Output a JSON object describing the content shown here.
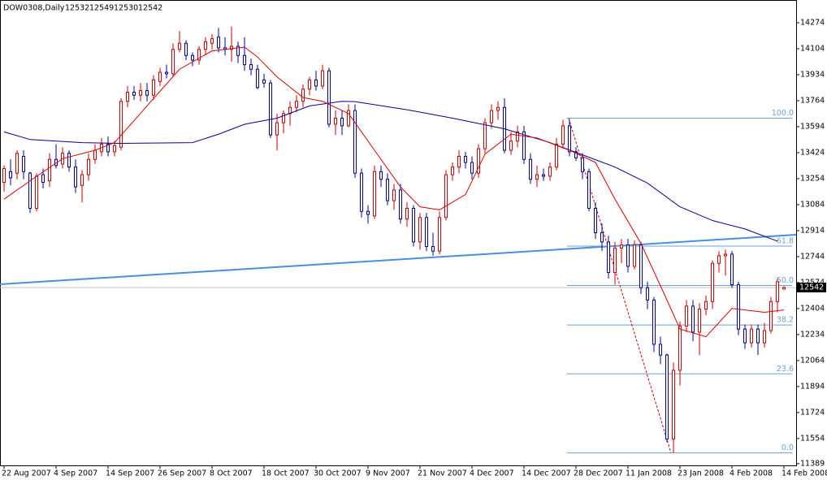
{
  "chart_data": {
    "type": "candlestick",
    "title": "DOW0308,Daily",
    "categories": [
      "22 Aug 2007",
      null,
      null,
      null,
      null,
      null,
      null,
      null,
      "4 Sep 2007",
      null,
      null,
      null,
      null,
      null,
      null,
      null,
      "14 Sep 2007",
      null,
      null,
      null,
      null,
      null,
      null,
      null,
      "26 Sep 2007",
      null,
      null,
      null,
      null,
      null,
      null,
      null,
      "8 Oct 2007",
      null,
      null,
      null,
      null,
      null,
      null,
      null,
      "18 Oct 2007",
      null,
      null,
      null,
      null,
      null,
      null,
      null,
      "30 Oct 2007",
      null,
      null,
      null,
      null,
      null,
      null,
      null,
      "9 Nov 2007",
      null,
      null,
      null,
      null,
      null,
      null,
      null,
      "21 Nov 2007",
      null,
      null,
      null,
      null,
      null,
      null,
      null,
      "4 Dec 2007",
      null,
      null,
      null,
      null,
      null,
      null,
      null,
      "14 Dec 2007",
      null,
      null,
      null,
      null,
      null,
      null,
      null,
      "28 Dec 2007",
      null,
      null,
      null,
      null,
      null,
      null,
      null,
      "11 Jan 2008",
      null,
      null,
      null,
      null,
      null,
      null,
      null,
      "23 Jan 2008",
      null,
      null,
      null,
      null,
      null,
      null,
      null,
      "4 Feb 2008",
      null,
      null,
      null,
      null,
      null,
      null,
      null,
      "14 Feb 2008"
    ],
    "open": [
      13230,
      13300,
      13290,
      13400,
      13290,
      13060,
      13280,
      13240,
      13380,
      13350,
      13420,
      13330,
      13210,
      13280,
      13380,
      13430,
      13480,
      13430,
      13460,
      13760,
      13820,
      13800,
      13830,
      13800,
      13890,
      13950,
      13940,
      14100,
      14140,
      14060,
      14030,
      14100,
      14140,
      14180,
      14110,
      14100,
      14120,
      14060,
      14000,
      13970,
      13900,
      13880,
      13540,
      13620,
      13680,
      13720,
      13760,
      13840,
      13900,
      13860,
      13960,
      13610,
      13650,
      13600,
      13700,
      13290,
      13040,
      13010,
      13300,
      13250,
      13110,
      13180,
      12990,
      13060,
      12840,
      13000,
      12810,
      12780,
      13000,
      13280,
      13330,
      13400,
      13360,
      13290,
      13450,
      13620,
      13700,
      13720,
      13440,
      13500,
      13560,
      13380,
      13250,
      13280,
      13270,
      13330,
      13480,
      13600,
      13430,
      13390,
      13300,
      13060,
      12900,
      12840,
      12640,
      12800,
      12820,
      12680,
      12820,
      12540,
      12460,
      12170,
      12100,
      11550,
      12000,
      12290,
      12420,
      12250,
      12400,
      12450,
      12700,
      12750,
      12760,
      12560,
      12270,
      12180,
      12270,
      12180,
      12260,
      12450,
      12532
    ],
    "high": [
      13340,
      13380,
      13440,
      13440,
      13300,
      13290,
      13320,
      13420,
      13480,
      13460,
      13440,
      13380,
      13310,
      13420,
      13480,
      13520,
      13530,
      13500,
      13780,
      13860,
      13860,
      13880,
      13880,
      13930,
      13980,
      14000,
      14140,
      14220,
      14160,
      14080,
      14120,
      14180,
      14200,
      14240,
      14180,
      14250,
      14150,
      14180,
      14040,
      14000,
      13940,
      13900,
      13680,
      13700,
      13760,
      13800,
      13870,
      13920,
      13960,
      14000,
      13980,
      13700,
      13700,
      13740,
      13740,
      13320,
      13080,
      13340,
      13340,
      13290,
      13220,
      13220,
      13100,
      13080,
      13030,
      13030,
      12900,
      13040,
      13310,
      13360,
      13440,
      13430,
      13400,
      13480,
      13650,
      13740,
      13760,
      13780,
      13560,
      13600,
      13600,
      13420,
      13340,
      13320,
      13360,
      13520,
      13640,
      13640,
      13460,
      13420,
      13320,
      13100,
      12960,
      12880,
      12840,
      12860,
      12860,
      12850,
      12840,
      12580,
      12480,
      12220,
      12110,
      12050,
      12320,
      12460,
      12460,
      12440,
      12490,
      12720,
      12780,
      12790,
      12780,
      12580,
      12300,
      12300,
      12300,
      12310,
      12480,
      12600,
      12549
    ],
    "low": [
      13170,
      13210,
      13250,
      13250,
      13030,
      13040,
      13190,
      13200,
      13320,
      13320,
      13300,
      13160,
      13100,
      13240,
      13350,
      13400,
      13400,
      13400,
      13440,
      13720,
      13770,
      13760,
      13760,
      13770,
      13860,
      13910,
      13920,
      14080,
      14030,
      13990,
      14000,
      14060,
      14100,
      14080,
      14060,
      14020,
      14010,
      13960,
      13930,
      13840,
      13850,
      13520,
      13440,
      13550,
      13600,
      13690,
      13720,
      13800,
      13830,
      13840,
      13590,
      13540,
      13540,
      13590,
      13260,
      13000,
      12960,
      12990,
      13200,
      13080,
      13050,
      12960,
      12940,
      12810,
      12790,
      12780,
      12750,
      12760,
      12980,
      13240,
      13290,
      13320,
      13250,
      13260,
      13420,
      13580,
      13640,
      13420,
      13410,
      13460,
      13350,
      13220,
      13200,
      13240,
      13240,
      13310,
      13450,
      13400,
      13370,
      13250,
      13040,
      12860,
      12780,
      12600,
      12560,
      12700,
      12640,
      12660,
      12500,
      12400,
      12120,
      12040,
      11530,
      11460,
      11900,
      12250,
      12190,
      12100,
      12360,
      12400,
      12640,
      12620,
      12540,
      12230,
      12140,
      12150,
      12100,
      12150,
      12240,
      12380,
      12530
    ],
    "close": [
      13320,
      13260,
      13420,
      13300,
      13060,
      13270,
      13230,
      13380,
      13340,
      13420,
      13330,
      13200,
      13280,
      13380,
      13440,
      13480,
      13430,
      13470,
      13760,
      13820,
      13800,
      13830,
      13800,
      13900,
      13950,
      13940,
      14100,
      14140,
      14060,
      14030,
      14100,
      14150,
      14170,
      14110,
      14100,
      14120,
      14060,
      14000,
      13970,
      13850,
      13880,
      13540,
      13620,
      13680,
      13720,
      13760,
      13840,
      13900,
      13860,
      13960,
      13610,
      13650,
      13600,
      13700,
      13290,
      13040,
      13020,
      13300,
      13250,
      13110,
      13180,
      12990,
      13060,
      12840,
      13000,
      12810,
      12780,
      13000,
      13280,
      13330,
      13400,
      13360,
      13290,
      13450,
      13620,
      13700,
      13720,
      13440,
      13500,
      13560,
      13380,
      13250,
      13280,
      13270,
      13330,
      13480,
      13600,
      13430,
      13390,
      13300,
      13060,
      12900,
      12840,
      12640,
      12800,
      12820,
      12680,
      12820,
      12540,
      12460,
      12170,
      12100,
      11550,
      12000,
      12290,
      12420,
      12250,
      12400,
      12450,
      12700,
      12750,
      12760,
      12560,
      12270,
      12180,
      12270,
      12180,
      12260,
      12450,
      12580,
      12542
    ],
    "up_color": "#cc0000",
    "down_color": "#000099",
    "moving_averages": [
      {
        "color": "#000099",
        "points": [
          [
            0,
            13560
          ],
          [
            4,
            13510
          ],
          [
            12,
            13490
          ],
          [
            18,
            13485
          ],
          [
            29,
            13490
          ],
          [
            33,
            13545
          ],
          [
            37,
            13610
          ],
          [
            42,
            13650
          ],
          [
            47,
            13730
          ],
          [
            52,
            13760
          ],
          [
            54,
            13758
          ],
          [
            62,
            13705
          ],
          [
            69,
            13650
          ],
          [
            77,
            13580
          ],
          [
            84,
            13490
          ],
          [
            89,
            13410
          ],
          [
            94,
            13330
          ],
          [
            99,
            13225
          ],
          [
            104,
            13070
          ],
          [
            109,
            12980
          ],
          [
            114,
            12925
          ],
          [
            119,
            12845
          ]
        ]
      },
      {
        "color": "#dd0000",
        "points": [
          [
            0,
            13120
          ],
          [
            4,
            13240
          ],
          [
            9,
            13385
          ],
          [
            14,
            13440
          ],
          [
            17,
            13490
          ],
          [
            22,
            13730
          ],
          [
            27,
            13970
          ],
          [
            32,
            14090
          ],
          [
            37,
            14115
          ],
          [
            39,
            14050
          ],
          [
            42,
            13920
          ],
          [
            46,
            13785
          ],
          [
            49,
            13760
          ],
          [
            53,
            13680
          ],
          [
            57,
            13440
          ],
          [
            61,
            13200
          ],
          [
            64,
            13070
          ],
          [
            67,
            13050
          ],
          [
            71,
            13150
          ],
          [
            74,
            13415
          ],
          [
            78,
            13545
          ],
          [
            82,
            13520
          ],
          [
            87,
            13440
          ],
          [
            91,
            13360
          ],
          [
            94,
            13120
          ],
          [
            98,
            12830
          ],
          [
            102,
            12460
          ],
          [
            104,
            12270
          ],
          [
            108,
            12220
          ],
          [
            112,
            12405
          ],
          [
            117,
            12380
          ],
          [
            120,
            12395
          ]
        ]
      }
    ],
    "trend_line": {
      "color": "#4a8fd9",
      "values": [
        12563,
        12887
      ]
    },
    "fibonacci": {
      "color": "#6f9fd8",
      "line_color": "#cc0000",
      "levels": [
        {
          "value": 13650,
          "label": "100.0"
        },
        {
          "value": 12813,
          "label": "61.8"
        },
        {
          "value": 12555,
          "label": "50.0"
        },
        {
          "value": 12297,
          "label": "38.2"
        },
        {
          "value": 11977,
          "label": "23.6"
        },
        {
          "value": 11460,
          "label": "0.0"
        }
      ]
    },
    "ylim": [
      11378,
      14423
    ],
    "yticks": [
      14274,
      14104,
      13934,
      13764,
      13594,
      13424,
      13254,
      13084,
      12914,
      12744,
      12574,
      12404,
      12234,
      12064,
      11894,
      11724,
      11554,
      11389
    ]
  }
}
